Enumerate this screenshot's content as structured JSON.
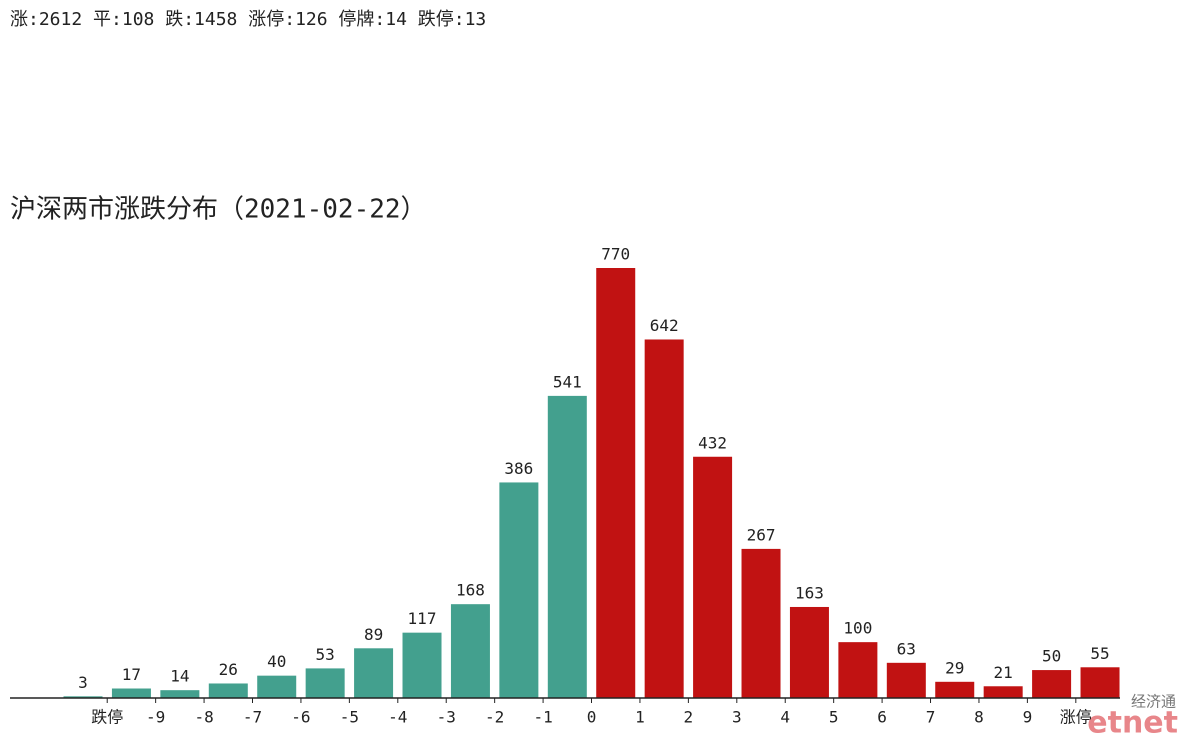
{
  "header": {
    "summary": "涨:2612 平:108 跌:1458 涨停:126 停牌:14 跌停:13"
  },
  "chart_data": {
    "type": "bar",
    "title": "沪深两市涨跌分布（2021-02-22）",
    "values": [
      3,
      17,
      14,
      26,
      40,
      53,
      89,
      117,
      168,
      386,
      541,
      770,
      642,
      432,
      267,
      163,
      100,
      63,
      29,
      21,
      50,
      55
    ],
    "colors": [
      "#43a08e",
      "#43a08e",
      "#43a08e",
      "#43a08e",
      "#43a08e",
      "#43a08e",
      "#43a08e",
      "#43a08e",
      "#43a08e",
      "#43a08e",
      "#43a08e",
      "#c11212",
      "#c11212",
      "#c11212",
      "#c11212",
      "#c11212",
      "#c11212",
      "#c11212",
      "#c11212",
      "#c11212",
      "#c11212",
      "#c11212"
    ],
    "edge_labels": [
      "跌停",
      "-9",
      "-8",
      "-7",
      "-6",
      "-5",
      "-4",
      "-3",
      "-2",
      "-1",
      "0",
      "1",
      "2",
      "3",
      "4",
      "5",
      "6",
      "7",
      "8",
      "9",
      "涨停"
    ]
  },
  "watermark": {
    "name": "经济通",
    "logo": "etnet"
  }
}
